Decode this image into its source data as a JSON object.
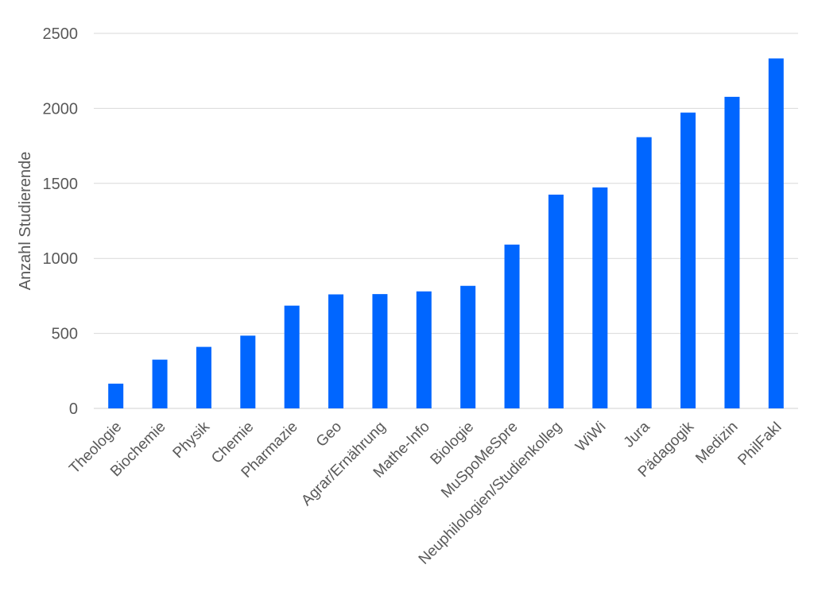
{
  "chart_data": {
    "type": "bar",
    "title": "",
    "xlabel": "",
    "ylabel": "Anzahl Studierende",
    "ylim": [
      0,
      2500
    ],
    "yticks": [
      0,
      500,
      1000,
      1500,
      2000,
      2500
    ],
    "grid": true,
    "bar_color": "#0066ff",
    "categories": [
      "Theologie",
      "Biochemie",
      "Physik",
      "Chemie",
      "Pharmazie",
      "Geo",
      "Agrar/Ernährung",
      "Mathe-Info",
      "Biologie",
      "MuSpoMeSpre",
      "Neuphilologien/Studienkolleg",
      "WiWi",
      "Jura",
      "Pädagogik",
      "Medizin",
      "PhilFakI"
    ],
    "values": [
      165,
      325,
      410,
      485,
      685,
      760,
      762,
      780,
      817,
      1092,
      1425,
      1473,
      1808,
      1972,
      2077,
      2333
    ]
  }
}
